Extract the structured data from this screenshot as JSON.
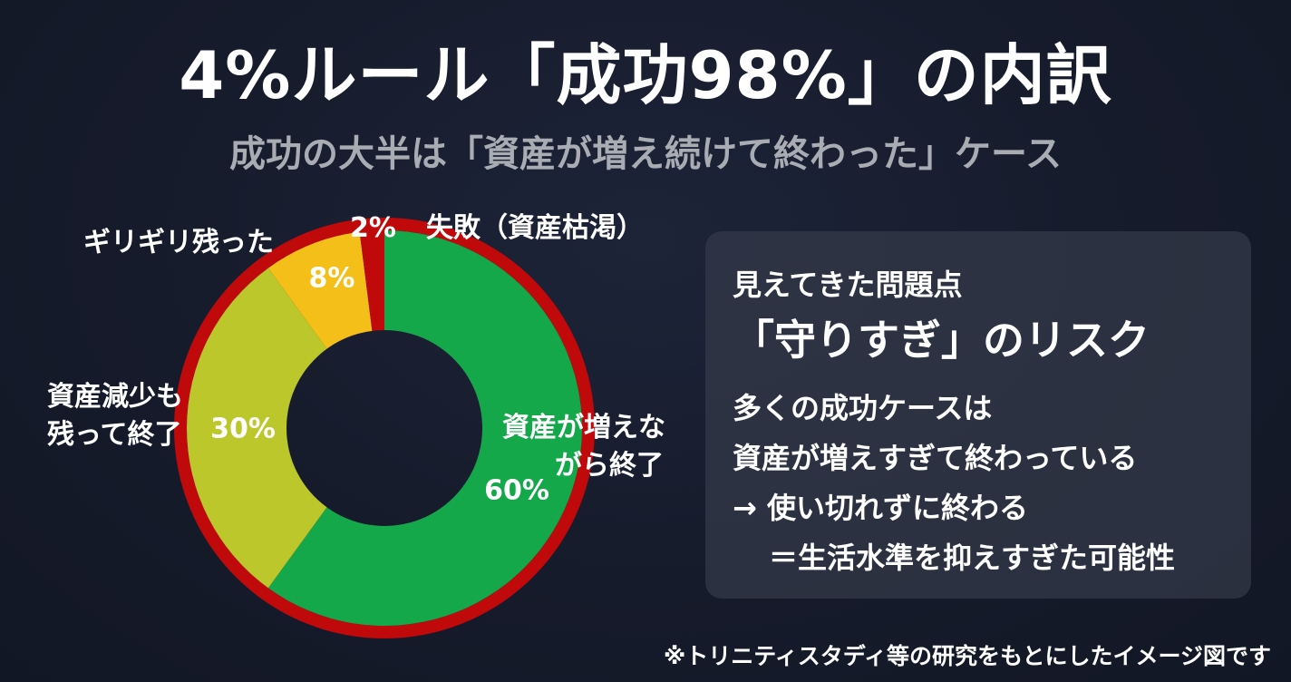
{
  "header": {
    "title": "4%ルール「成功98%」の内訳",
    "subtitle": "成功の大半は「資産が増え続けて終わった」ケース"
  },
  "chart_data": {
    "type": "pie",
    "style": "donut",
    "slices": [
      {
        "key": "grow",
        "label": "資産が増え\nながら終了",
        "value": 60,
        "value_label": "60%",
        "color": "#15a84b"
      },
      {
        "key": "decrease",
        "label": "資産減少も\n残って終了",
        "value": 30,
        "value_label": "30%",
        "color": "#bcc72c"
      },
      {
        "key": "barely",
        "label": "ギリギリ残った",
        "value": 8,
        "value_label": "8%",
        "color": "#f5bf1a"
      },
      {
        "key": "fail",
        "label": "失敗（資産枯渇）",
        "value": 2,
        "value_label": "2%",
        "color": "#c0090b"
      }
    ],
    "success_ring_color": "#c0090b"
  },
  "callouts": {
    "grow_line1": "資産が増えな",
    "grow_line2": "がら終了",
    "decrease_line1": "資産減少も",
    "decrease_line2": "残って終了",
    "barely": "ギリギリ残った",
    "fail_value": "2%",
    "fail_label": "失敗（資産枯渇）"
  },
  "panel": {
    "heading": "見えてきた問題点",
    "title": "「守りすぎ」のリスク",
    "lines": [
      "多くの成功ケースは",
      "資産が増えすぎて終わっている",
      "→ 使い切れずに終わる",
      "＝生活水準を抑えすぎた可能性"
    ]
  },
  "footnote": "※トリニティスタディ等の研究をもとにしたイメージ図です",
  "colors": {
    "background": "#161b2b",
    "panel": "#343a4a",
    "text": "#ffffff",
    "subtitle": "#a9acb3"
  }
}
